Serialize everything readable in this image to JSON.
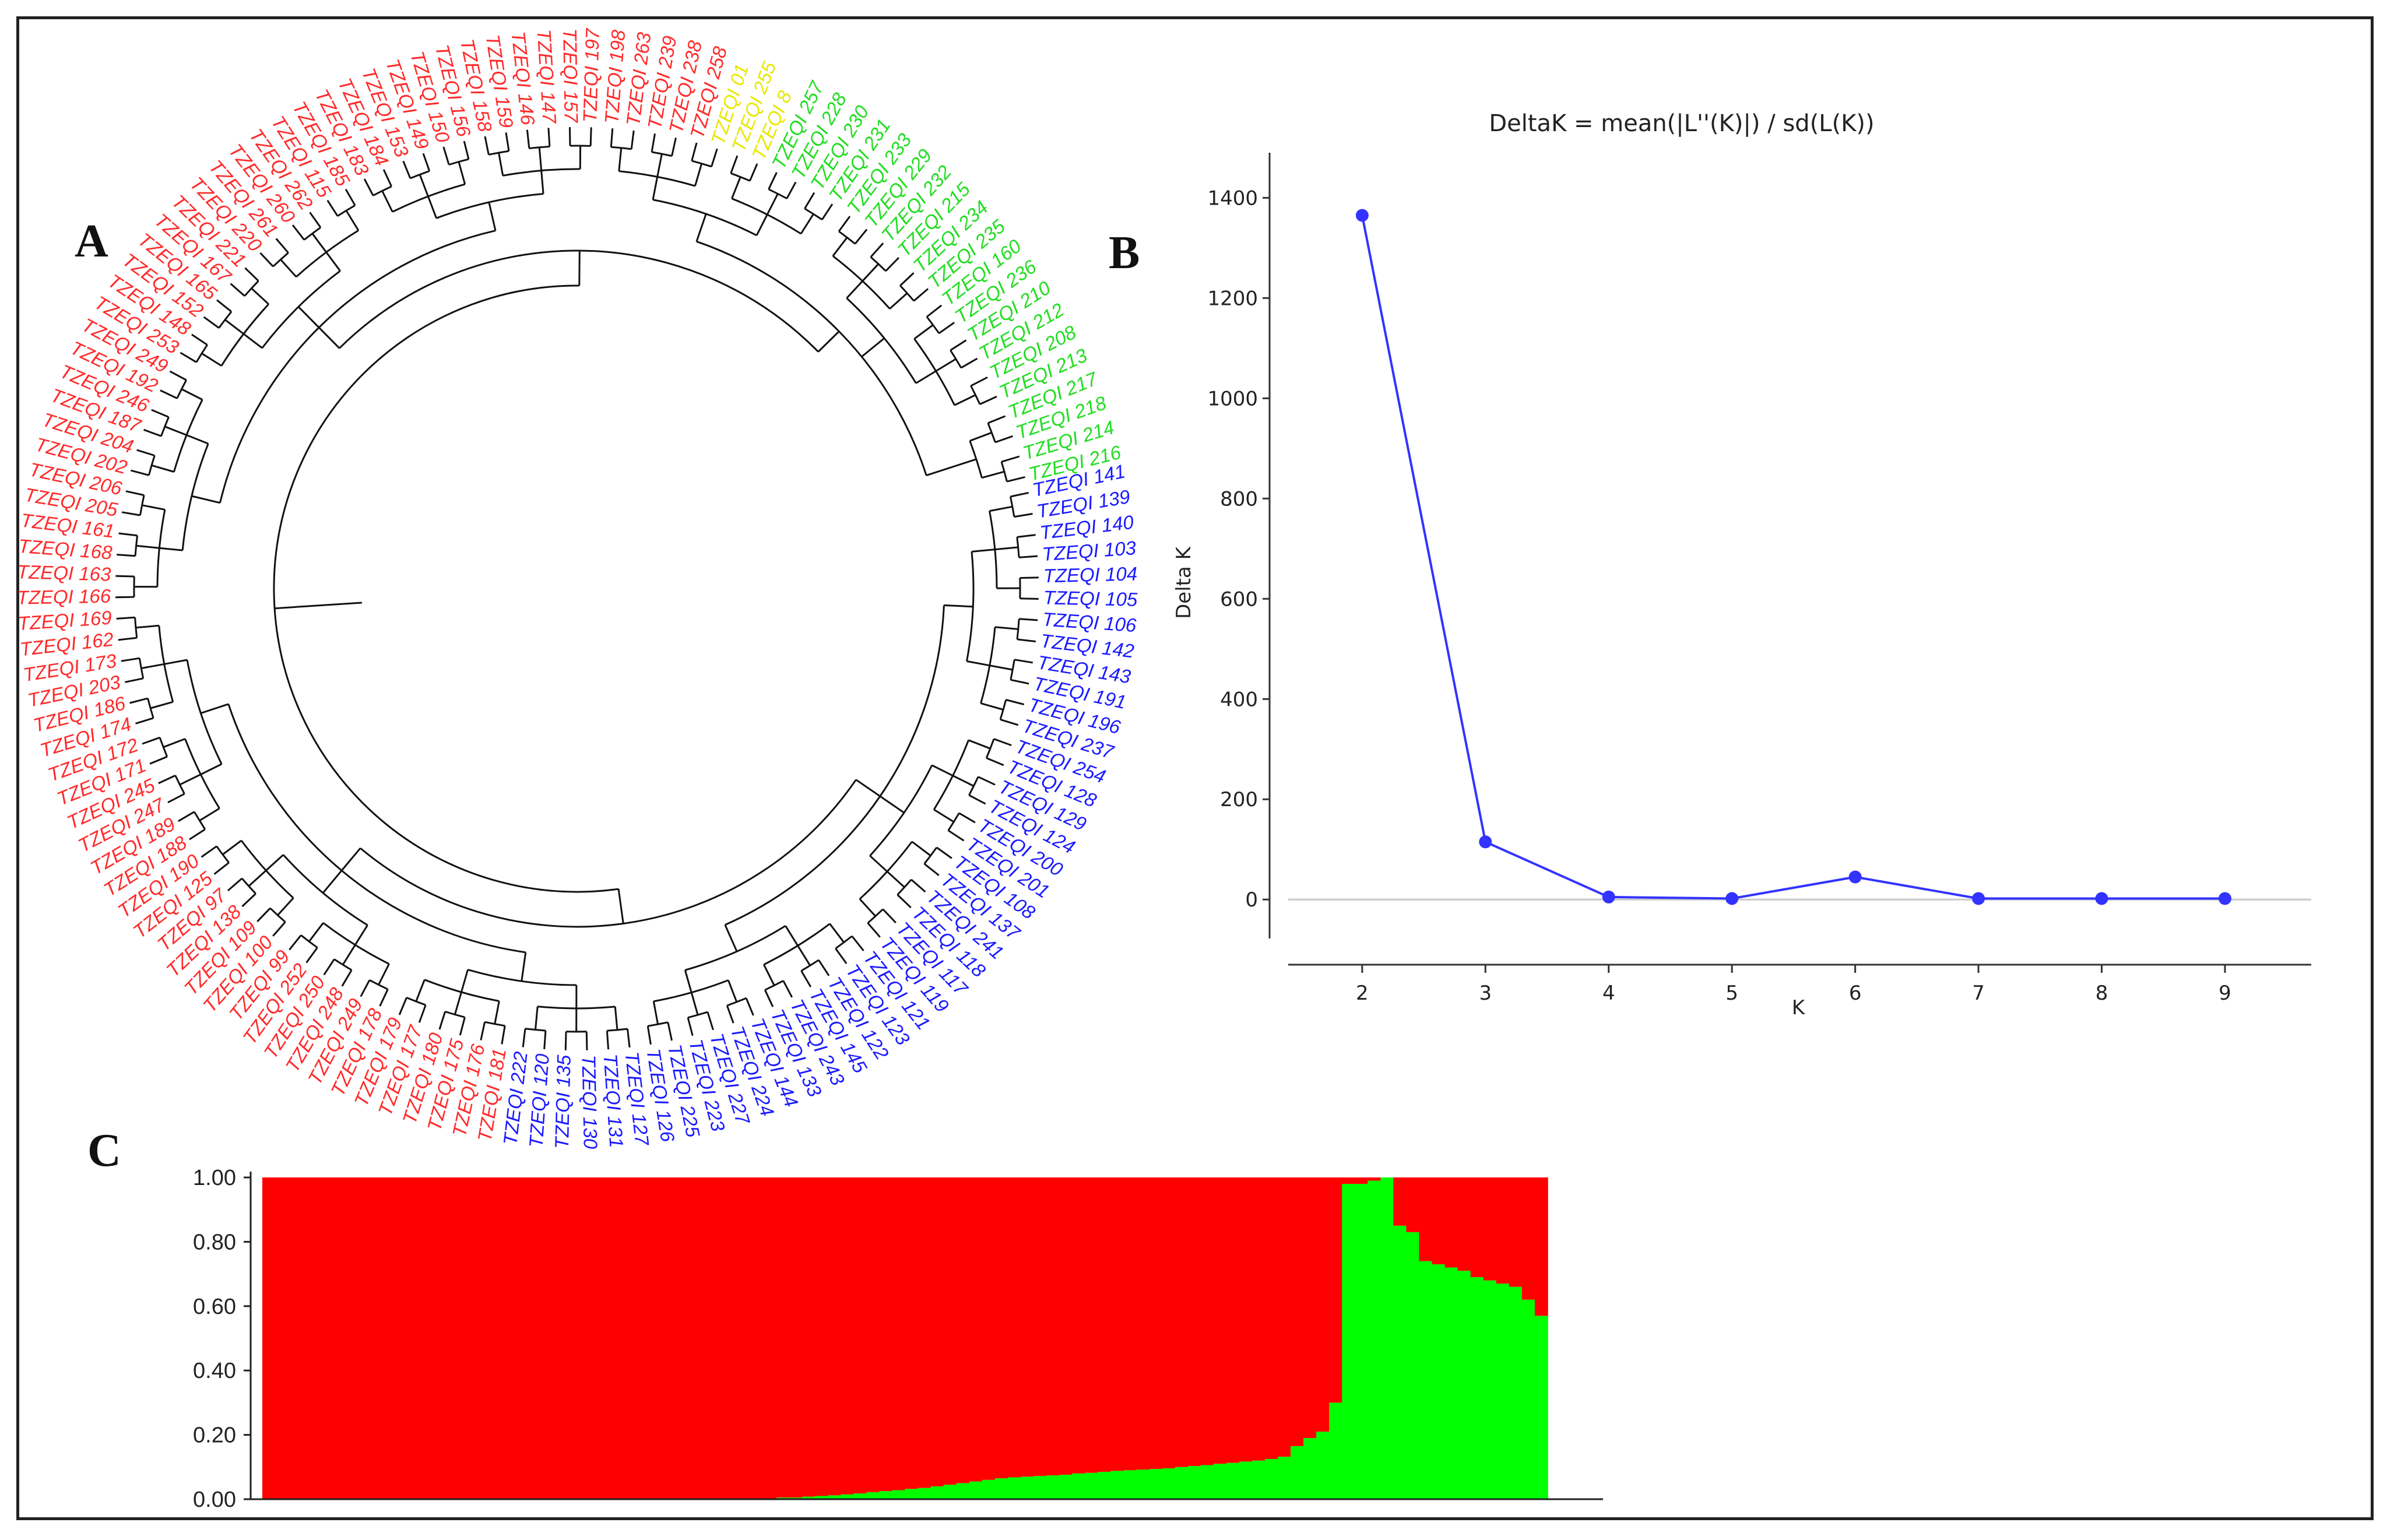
{
  "panels": {
    "a": "A",
    "b": "B",
    "c": "C"
  },
  "colors": {
    "red": "#ff2a2a",
    "blue": "#1a1aff",
    "green": "#22dd22",
    "yellow": "#e8e800",
    "line": "#3333ff",
    "fill_red": "#ff0000",
    "fill_green": "#00ff00"
  },
  "dendrogram": {
    "prefix": "TZEQI",
    "leaves": [
      {
        "id": "141",
        "group": "blue"
      },
      {
        "id": "139",
        "group": "blue"
      },
      {
        "id": "140",
        "group": "blue"
      },
      {
        "id": "103",
        "group": "blue"
      },
      {
        "id": "104",
        "group": "blue"
      },
      {
        "id": "105",
        "group": "blue"
      },
      {
        "id": "106",
        "group": "blue"
      },
      {
        "id": "142",
        "group": "blue"
      },
      {
        "id": "143",
        "group": "blue"
      },
      {
        "id": "191",
        "group": "blue"
      },
      {
        "id": "196",
        "group": "blue"
      },
      {
        "id": "237",
        "group": "blue"
      },
      {
        "id": "254",
        "group": "blue"
      },
      {
        "id": "128",
        "group": "blue"
      },
      {
        "id": "129",
        "group": "blue"
      },
      {
        "id": "124",
        "group": "blue"
      },
      {
        "id": "200",
        "group": "blue"
      },
      {
        "id": "201",
        "group": "blue"
      },
      {
        "id": "108",
        "group": "blue"
      },
      {
        "id": "137",
        "group": "blue"
      },
      {
        "id": "241",
        "group": "blue"
      },
      {
        "id": "118",
        "group": "blue"
      },
      {
        "id": "117",
        "group": "blue"
      },
      {
        "id": "119",
        "group": "blue"
      },
      {
        "id": "121",
        "group": "blue"
      },
      {
        "id": "123",
        "group": "blue"
      },
      {
        "id": "122",
        "group": "blue"
      },
      {
        "id": "145",
        "group": "blue"
      },
      {
        "id": "243",
        "group": "blue"
      },
      {
        "id": "133",
        "group": "blue"
      },
      {
        "id": "144",
        "group": "blue"
      },
      {
        "id": "224",
        "group": "blue"
      },
      {
        "id": "227",
        "group": "blue"
      },
      {
        "id": "223",
        "group": "blue"
      },
      {
        "id": "225",
        "group": "blue"
      },
      {
        "id": "126",
        "group": "blue"
      },
      {
        "id": "127",
        "group": "blue"
      },
      {
        "id": "131",
        "group": "blue"
      },
      {
        "id": "130",
        "group": "blue"
      },
      {
        "id": "135",
        "group": "blue"
      },
      {
        "id": "120",
        "group": "blue"
      },
      {
        "id": "222",
        "group": "blue"
      },
      {
        "id": "181",
        "group": "red"
      },
      {
        "id": "176",
        "group": "red"
      },
      {
        "id": "175",
        "group": "red"
      },
      {
        "id": "180",
        "group": "red"
      },
      {
        "id": "177",
        "group": "red"
      },
      {
        "id": "179",
        "group": "red"
      },
      {
        "id": "178",
        "group": "red"
      },
      {
        "id": "249",
        "group": "red"
      },
      {
        "id": "248",
        "group": "red"
      },
      {
        "id": "250",
        "group": "red"
      },
      {
        "id": "252",
        "group": "red"
      },
      {
        "id": "99",
        "group": "red"
      },
      {
        "id": "100",
        "group": "red"
      },
      {
        "id": "109",
        "group": "red"
      },
      {
        "id": "138",
        "group": "red"
      },
      {
        "id": "97",
        "group": "red"
      },
      {
        "id": "125",
        "group": "red"
      },
      {
        "id": "190",
        "group": "red"
      },
      {
        "id": "188",
        "group": "red"
      },
      {
        "id": "189",
        "group": "red"
      },
      {
        "id": "247",
        "group": "red"
      },
      {
        "id": "245",
        "group": "red"
      },
      {
        "id": "171",
        "group": "red"
      },
      {
        "id": "172",
        "group": "red"
      },
      {
        "id": "174",
        "group": "red"
      },
      {
        "id": "186",
        "group": "red"
      },
      {
        "id": "203",
        "group": "red"
      },
      {
        "id": "173",
        "group": "red"
      },
      {
        "id": "162",
        "group": "red"
      },
      {
        "id": "169",
        "group": "red"
      },
      {
        "id": "166",
        "group": "red"
      },
      {
        "id": "163",
        "group": "red"
      },
      {
        "id": "168",
        "group": "red"
      },
      {
        "id": "161",
        "group": "red"
      },
      {
        "id": "205",
        "group": "red"
      },
      {
        "id": "206",
        "group": "red"
      },
      {
        "id": "202",
        "group": "red"
      },
      {
        "id": "204",
        "group": "red"
      },
      {
        "id": "187",
        "group": "red"
      },
      {
        "id": "246",
        "group": "red"
      },
      {
        "id": "192",
        "group": "red"
      },
      {
        "id": "249",
        "group": "red"
      },
      {
        "id": "253",
        "group": "red"
      },
      {
        "id": "148",
        "group": "red"
      },
      {
        "id": "152",
        "group": "red"
      },
      {
        "id": "165",
        "group": "red"
      },
      {
        "id": "167",
        "group": "red"
      },
      {
        "id": "221",
        "group": "red"
      },
      {
        "id": "220",
        "group": "red"
      },
      {
        "id": "261",
        "group": "red"
      },
      {
        "id": "260",
        "group": "red"
      },
      {
        "id": "262",
        "group": "red"
      },
      {
        "id": "115",
        "group": "red"
      },
      {
        "id": "185",
        "group": "red"
      },
      {
        "id": "183",
        "group": "red"
      },
      {
        "id": "184",
        "group": "red"
      },
      {
        "id": "153",
        "group": "red"
      },
      {
        "id": "149",
        "group": "red"
      },
      {
        "id": "150",
        "group": "red"
      },
      {
        "id": "156",
        "group": "red"
      },
      {
        "id": "158",
        "group": "red"
      },
      {
        "id": "159",
        "group": "red"
      },
      {
        "id": "146",
        "group": "red"
      },
      {
        "id": "147",
        "group": "red"
      },
      {
        "id": "157",
        "group": "red"
      },
      {
        "id": "197",
        "group": "red"
      },
      {
        "id": "198",
        "group": "red"
      },
      {
        "id": "263",
        "group": "red"
      },
      {
        "id": "239",
        "group": "red"
      },
      {
        "id": "238",
        "group": "red"
      },
      {
        "id": "258",
        "group": "red"
      },
      {
        "id": "01",
        "group": "yellow"
      },
      {
        "id": "255",
        "group": "yellow"
      },
      {
        "id": "8",
        "group": "yellow"
      },
      {
        "id": "257",
        "group": "green"
      },
      {
        "id": "228",
        "group": "green"
      },
      {
        "id": "230",
        "group": "green"
      },
      {
        "id": "231",
        "group": "green"
      },
      {
        "id": "233",
        "group": "green"
      },
      {
        "id": "229",
        "group": "green"
      },
      {
        "id": "232",
        "group": "green"
      },
      {
        "id": "215",
        "group": "green"
      },
      {
        "id": "234",
        "group": "green"
      },
      {
        "id": "235",
        "group": "green"
      },
      {
        "id": "160",
        "group": "green"
      },
      {
        "id": "236",
        "group": "green"
      },
      {
        "id": "210",
        "group": "green"
      },
      {
        "id": "212",
        "group": "green"
      },
      {
        "id": "208",
        "group": "green"
      },
      {
        "id": "213",
        "group": "green"
      },
      {
        "id": "217",
        "group": "green"
      },
      {
        "id": "218",
        "group": "green"
      },
      {
        "id": "214",
        "group": "green"
      },
      {
        "id": "216",
        "group": "green"
      }
    ]
  },
  "chart_data": [
    {
      "type": "line",
      "title": "DeltaK = mean(|L''(K)|) / sd(L(K))",
      "xlabel": "K",
      "ylabel": "Delta K",
      "x": [
        2,
        3,
        4,
        5,
        6,
        7,
        8,
        9
      ],
      "values": [
        1365,
        115,
        5,
        2,
        45,
        2,
        2,
        2
      ],
      "xlim": [
        1.4,
        9.7
      ],
      "ylim": [
        -130,
        1490
      ],
      "xticks": [
        2,
        3,
        4,
        5,
        6,
        7,
        8,
        9
      ],
      "yticks": [
        0,
        200,
        400,
        600,
        800,
        1000,
        1200,
        1400
      ],
      "legend": "none"
    },
    {
      "type": "bar",
      "title": "",
      "xlabel": "",
      "ylabel": "",
      "ylim": [
        0,
        1
      ],
      "yticks": [
        "0.00",
        "0.20",
        "0.40",
        "0.60",
        "0.80",
        "1.00"
      ],
      "series": [
        {
          "name": "red",
          "values": [
            1.0,
            1.0,
            1.0,
            1.0,
            1.0,
            1.0,
            1.0,
            1.0,
            1.0,
            1.0,
            1.0,
            1.0,
            1.0,
            1.0,
            1.0,
            1.0,
            1.0,
            1.0,
            1.0,
            1.0,
            1.0,
            1.0,
            1.0,
            1.0,
            1.0,
            1.0,
            1.0,
            1.0,
            1.0,
            1.0,
            1.0,
            1.0,
            1.0,
            1.0,
            1.0,
            1.0,
            1.0,
            1.0,
            1.0,
            1.0,
            0.995,
            0.995,
            0.992,
            0.99,
            0.988,
            0.985,
            0.982,
            0.978,
            0.975,
            0.972,
            0.968,
            0.965,
            0.96,
            0.955,
            0.95,
            0.945,
            0.94,
            0.935,
            0.932,
            0.93,
            0.928,
            0.926,
            0.924,
            0.92,
            0.918,
            0.915,
            0.912,
            0.91,
            0.908,
            0.906,
            0.904,
            0.9,
            0.897,
            0.894,
            0.89,
            0.887,
            0.883,
            0.88,
            0.875,
            0.868,
            0.835,
            0.81,
            0.79,
            0.7,
            0.02,
            0.02,
            0.01,
            0.0,
            0.15,
            0.17,
            0.26,
            0.27,
            0.28,
            0.29,
            0.31,
            0.32,
            0.33,
            0.34,
            0.38,
            0.43
          ]
        },
        {
          "name": "green",
          "values": [
            0.0,
            0.0,
            0.0,
            0.0,
            0.0,
            0.0,
            0.0,
            0.0,
            0.0,
            0.0,
            0.0,
            0.0,
            0.0,
            0.0,
            0.0,
            0.0,
            0.0,
            0.0,
            0.0,
            0.0,
            0.0,
            0.0,
            0.0,
            0.0,
            0.0,
            0.0,
            0.0,
            0.0,
            0.0,
            0.0,
            0.0,
            0.0,
            0.0,
            0.0,
            0.0,
            0.0,
            0.0,
            0.0,
            0.0,
            0.0,
            0.005,
            0.005,
            0.008,
            0.01,
            0.012,
            0.015,
            0.018,
            0.022,
            0.025,
            0.028,
            0.032,
            0.035,
            0.04,
            0.045,
            0.05,
            0.055,
            0.06,
            0.065,
            0.068,
            0.07,
            0.072,
            0.074,
            0.076,
            0.08,
            0.082,
            0.085,
            0.088,
            0.09,
            0.092,
            0.094,
            0.096,
            0.1,
            0.103,
            0.106,
            0.11,
            0.113,
            0.117,
            0.12,
            0.125,
            0.132,
            0.165,
            0.19,
            0.21,
            0.3,
            0.98,
            0.98,
            0.99,
            1.0,
            0.85,
            0.83,
            0.74,
            0.73,
            0.72,
            0.71,
            0.69,
            0.68,
            0.67,
            0.66,
            0.62,
            0.57
          ]
        }
      ]
    }
  ]
}
